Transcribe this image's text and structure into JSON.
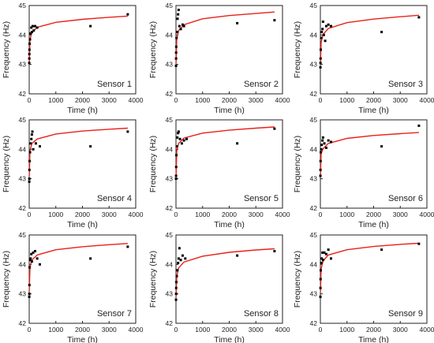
{
  "chart_data": [
    {
      "type": "scatter",
      "panel_label": "Sensor 1",
      "xlabel": "Time (h)",
      "ylabel": "Frequency (Hz)",
      "xlim": [
        0,
        4000
      ],
      "ylim": [
        42,
        45
      ],
      "xticks": [
        "0",
        "1000",
        "2000",
        "3000",
        "4000"
      ],
      "yticks": [
        "42",
        "43",
        "44",
        "45"
      ],
      "grid": false,
      "legend": "none",
      "point_color": "#000000",
      "fit_color": "#e8211b",
      "points": [
        [
          2,
          43.05
        ],
        [
          4,
          43.2
        ],
        [
          6,
          43.35
        ],
        [
          10,
          43.5
        ],
        [
          15,
          43.7
        ],
        [
          30,
          43.85
        ],
        [
          50,
          44.05
        ],
        [
          80,
          44.25
        ],
        [
          100,
          44.1
        ],
        [
          130,
          44.3
        ],
        [
          170,
          44.15
        ],
        [
          220,
          44.3
        ],
        [
          300,
          44.25
        ],
        [
          2300,
          44.3
        ],
        [
          3700,
          44.7
        ]
      ],
      "fit_curve": [
        [
          2,
          43.05
        ],
        [
          30,
          43.85
        ],
        [
          100,
          44.08
        ],
        [
          300,
          44.26
        ],
        [
          1000,
          44.43
        ],
        [
          2000,
          44.53
        ],
        [
          3000,
          44.6
        ],
        [
          3700,
          44.64
        ]
      ]
    },
    {
      "type": "scatter",
      "panel_label": "Sensor 2",
      "xlabel": "Time (h)",
      "ylabel": "Frequency (Hz)",
      "xlim": [
        0,
        4000
      ],
      "ylim": [
        42,
        45
      ],
      "xticks": [
        "0",
        "1000",
        "2000",
        "3000",
        "4000"
      ],
      "yticks": [
        "42",
        "43",
        "44",
        "45"
      ],
      "grid": false,
      "legend": "none",
      "point_color": "#000000",
      "fit_color": "#e8211b",
      "points": [
        [
          2,
          42.95
        ],
        [
          4,
          43.2
        ],
        [
          6,
          43.4
        ],
        [
          10,
          43.6
        ],
        [
          20,
          43.9
        ],
        [
          40,
          44.1
        ],
        [
          60,
          44.55
        ],
        [
          80,
          44.7
        ],
        [
          100,
          44.85
        ],
        [
          130,
          44.3
        ],
        [
          180,
          44.2
        ],
        [
          250,
          44.35
        ],
        [
          300,
          44.3
        ],
        [
          2300,
          44.4
        ],
        [
          3700,
          44.5
        ]
      ],
      "fit_curve": [
        [
          2,
          43.05
        ],
        [
          30,
          43.85
        ],
        [
          100,
          44.15
        ],
        [
          300,
          44.35
        ],
        [
          1000,
          44.55
        ],
        [
          2000,
          44.66
        ],
        [
          3000,
          44.73
        ],
        [
          3700,
          44.78
        ]
      ]
    },
    {
      "type": "scatter",
      "panel_label": "Sensor 3",
      "xlabel": "Time (h)",
      "ylabel": "Frequency (Hz)",
      "xlim": [
        0,
        4000
      ],
      "ylim": [
        42,
        45
      ],
      "xticks": [
        "0",
        "1000",
        "2000",
        "3000",
        "4000"
      ],
      "yticks": [
        "42",
        "43",
        "44",
        "45"
      ],
      "grid": false,
      "legend": "none",
      "point_color": "#000000",
      "fit_color": "#e8211b",
      "points": [
        [
          2,
          42.9
        ],
        [
          4,
          43.05
        ],
        [
          8,
          43.2
        ],
        [
          15,
          43.5
        ],
        [
          30,
          43.9
        ],
        [
          50,
          44.1
        ],
        [
          80,
          44.2
        ],
        [
          100,
          44.45
        ],
        [
          130,
          44.0
        ],
        [
          180,
          43.8
        ],
        [
          220,
          44.3
        ],
        [
          300,
          44.35
        ],
        [
          400,
          44.3
        ],
        [
          2300,
          44.1
        ],
        [
          3700,
          44.6
        ]
      ],
      "fit_curve": [
        [
          2,
          43.0
        ],
        [
          30,
          43.75
        ],
        [
          100,
          44.02
        ],
        [
          300,
          44.22
        ],
        [
          1000,
          44.42
        ],
        [
          2000,
          44.54
        ],
        [
          3000,
          44.62
        ],
        [
          3700,
          44.67
        ]
      ]
    },
    {
      "type": "scatter",
      "panel_label": "Sensor 4",
      "xlabel": "Time (h)",
      "ylabel": "Frequency (Hz)",
      "xlim": [
        0,
        4000
      ],
      "ylim": [
        42,
        45
      ],
      "xticks": [
        "0",
        "1000",
        "2000",
        "3000",
        "4000"
      ],
      "yticks": [
        "42",
        "43",
        "44",
        "45"
      ],
      "grid": false,
      "legend": "none",
      "point_color": "#000000",
      "fit_color": "#e8211b",
      "points": [
        [
          2,
          42.9
        ],
        [
          4,
          43.0
        ],
        [
          8,
          43.3
        ],
        [
          15,
          43.6
        ],
        [
          30,
          43.9
        ],
        [
          50,
          44.2
        ],
        [
          80,
          44.35
        ],
        [
          100,
          44.5
        ],
        [
          120,
          44.6
        ],
        [
          150,
          44.0
        ],
        [
          250,
          44.2
        ],
        [
          400,
          44.1
        ],
        [
          2300,
          44.1
        ],
        [
          3700,
          44.6
        ]
      ],
      "fit_curve": [
        [
          2,
          43.1
        ],
        [
          30,
          43.95
        ],
        [
          100,
          44.2
        ],
        [
          300,
          44.35
        ],
        [
          1000,
          44.52
        ],
        [
          2000,
          44.62
        ],
        [
          3000,
          44.68
        ],
        [
          3700,
          44.72
        ]
      ]
    },
    {
      "type": "scatter",
      "panel_label": "Sensor 5",
      "xlabel": "Time (h)",
      "ylabel": "Frequency (Hz)",
      "xlim": [
        0,
        4000
      ],
      "ylim": [
        42,
        45
      ],
      "xticks": [
        "0",
        "1000",
        "2000",
        "3000",
        "4000"
      ],
      "yticks": [
        "42",
        "43",
        "44",
        "45"
      ],
      "grid": false,
      "legend": "none",
      "point_color": "#000000",
      "fit_color": "#e8211b",
      "points": [
        [
          2,
          43.0
        ],
        [
          4,
          43.1
        ],
        [
          8,
          43.4
        ],
        [
          15,
          43.8
        ],
        [
          30,
          44.1
        ],
        [
          50,
          44.4
        ],
        [
          80,
          44.55
        ],
        [
          100,
          44.6
        ],
        [
          150,
          44.35
        ],
        [
          220,
          44.2
        ],
        [
          300,
          44.3
        ],
        [
          400,
          44.35
        ],
        [
          2300,
          44.2
        ],
        [
          3700,
          44.7
        ]
      ],
      "fit_curve": [
        [
          2,
          43.05
        ],
        [
          30,
          43.95
        ],
        [
          100,
          44.2
        ],
        [
          300,
          44.38
        ],
        [
          1000,
          44.55
        ],
        [
          2000,
          44.65
        ],
        [
          3000,
          44.72
        ],
        [
          3700,
          44.76
        ]
      ]
    },
    {
      "type": "scatter",
      "panel_label": "Sensor 6",
      "xlabel": "Time (h)",
      "ylabel": "Frequency (Hz)",
      "xlim": [
        0,
        4000
      ],
      "ylim": [
        42,
        45
      ],
      "xticks": [
        "0",
        "1000",
        "2000",
        "3000",
        "4000"
      ],
      "yticks": [
        "42",
        "43",
        "44",
        "45"
      ],
      "grid": false,
      "legend": "none",
      "point_color": "#000000",
      "fit_color": "#e8211b",
      "points": [
        [
          2,
          43.1
        ],
        [
          4,
          43.3
        ],
        [
          8,
          43.6
        ],
        [
          15,
          43.9
        ],
        [
          30,
          44.0
        ],
        [
          50,
          44.15
        ],
        [
          80,
          44.3
        ],
        [
          100,
          44.4
        ],
        [
          150,
          44.2
        ],
        [
          220,
          44.05
        ],
        [
          300,
          44.3
        ],
        [
          400,
          44.25
        ],
        [
          2300,
          44.1
        ],
        [
          3700,
          44.8
        ]
      ],
      "fit_curve": [
        [
          2,
          43.1
        ],
        [
          30,
          43.85
        ],
        [
          100,
          44.02
        ],
        [
          300,
          44.2
        ],
        [
          1000,
          44.37
        ],
        [
          2000,
          44.47
        ],
        [
          3000,
          44.53
        ],
        [
          3700,
          44.57
        ]
      ]
    },
    {
      "type": "scatter",
      "panel_label": "Sensor 7",
      "xlabel": "Time (h)",
      "ylabel": "Frequency (Hz)",
      "xlim": [
        0,
        4000
      ],
      "ylim": [
        42,
        45
      ],
      "xticks": [
        "0",
        "1000",
        "2000",
        "3000",
        "4000"
      ],
      "yticks": [
        "42",
        "43",
        "44",
        "45"
      ],
      "grid": false,
      "legend": "none",
      "point_color": "#000000",
      "fit_color": "#e8211b",
      "points": [
        [
          2,
          42.9
        ],
        [
          4,
          43.0
        ],
        [
          8,
          43.3
        ],
        [
          15,
          43.9
        ],
        [
          30,
          44.15
        ],
        [
          50,
          44.2
        ],
        [
          80,
          44.35
        ],
        [
          100,
          44.1
        ],
        [
          150,
          44.4
        ],
        [
          220,
          44.45
        ],
        [
          300,
          44.2
        ],
        [
          400,
          44.0
        ],
        [
          2300,
          44.2
        ],
        [
          3700,
          44.6
        ]
      ],
      "fit_curve": [
        [
          2,
          43.1
        ],
        [
          30,
          43.9
        ],
        [
          100,
          44.15
        ],
        [
          300,
          44.32
        ],
        [
          1000,
          44.5
        ],
        [
          2000,
          44.6
        ],
        [
          3000,
          44.67
        ],
        [
          3700,
          44.71
        ]
      ]
    },
    {
      "type": "scatter",
      "panel_label": "Sensor 8",
      "xlabel": "Time (h)",
      "ylabel": "Frequency (Hz)",
      "xlim": [
        0,
        4000
      ],
      "ylim": [
        42,
        45
      ],
      "xticks": [
        "0",
        "1000",
        "2000",
        "3000",
        "4000"
      ],
      "yticks": [
        "42",
        "43",
        "44",
        "45"
      ],
      "grid": false,
      "legend": "none",
      "point_color": "#000000",
      "fit_color": "#e8211b",
      "points": [
        [
          2,
          42.8
        ],
        [
          4,
          43.0
        ],
        [
          8,
          43.2
        ],
        [
          15,
          43.4
        ],
        [
          30,
          43.6
        ],
        [
          50,
          43.8
        ],
        [
          80,
          44.05
        ],
        [
          100,
          44.2
        ],
        [
          130,
          44.55
        ],
        [
          180,
          44.15
        ],
        [
          250,
          44.3
        ],
        [
          350,
          44.2
        ],
        [
          2300,
          44.3
        ],
        [
          3700,
          44.45
        ]
      ],
      "fit_curve": [
        [
          2,
          42.9
        ],
        [
          30,
          43.6
        ],
        [
          100,
          43.88
        ],
        [
          300,
          44.08
        ],
        [
          1000,
          44.28
        ],
        [
          2000,
          44.41
        ],
        [
          3000,
          44.49
        ],
        [
          3700,
          44.53
        ]
      ]
    },
    {
      "type": "scatter",
      "panel_label": "Sensor 9",
      "xlabel": "Time (h)",
      "ylabel": "Frequency (Hz)",
      "xlim": [
        0,
        4000
      ],
      "ylim": [
        42,
        45
      ],
      "xticks": [
        "0",
        "1000",
        "2000",
        "3000",
        "4000"
      ],
      "yticks": [
        "42",
        "43",
        "44",
        "45"
      ],
      "grid": false,
      "legend": "none",
      "point_color": "#000000",
      "fit_color": "#e8211b",
      "points": [
        [
          2,
          42.9
        ],
        [
          4,
          43.2
        ],
        [
          8,
          43.5
        ],
        [
          15,
          43.8
        ],
        [
          30,
          44.05
        ],
        [
          50,
          44.2
        ],
        [
          80,
          44.4
        ],
        [
          100,
          44.15
        ],
        [
          150,
          44.4
        ],
        [
          220,
          44.35
        ],
        [
          300,
          44.5
        ],
        [
          400,
          44.2
        ],
        [
          2300,
          44.5
        ],
        [
          3700,
          44.7
        ]
      ],
      "fit_curve": [
        [
          2,
          43.05
        ],
        [
          30,
          43.85
        ],
        [
          100,
          44.12
        ],
        [
          300,
          44.32
        ],
        [
          1000,
          44.5
        ],
        [
          2000,
          44.61
        ],
        [
          3000,
          44.68
        ],
        [
          3700,
          44.72
        ]
      ]
    }
  ]
}
